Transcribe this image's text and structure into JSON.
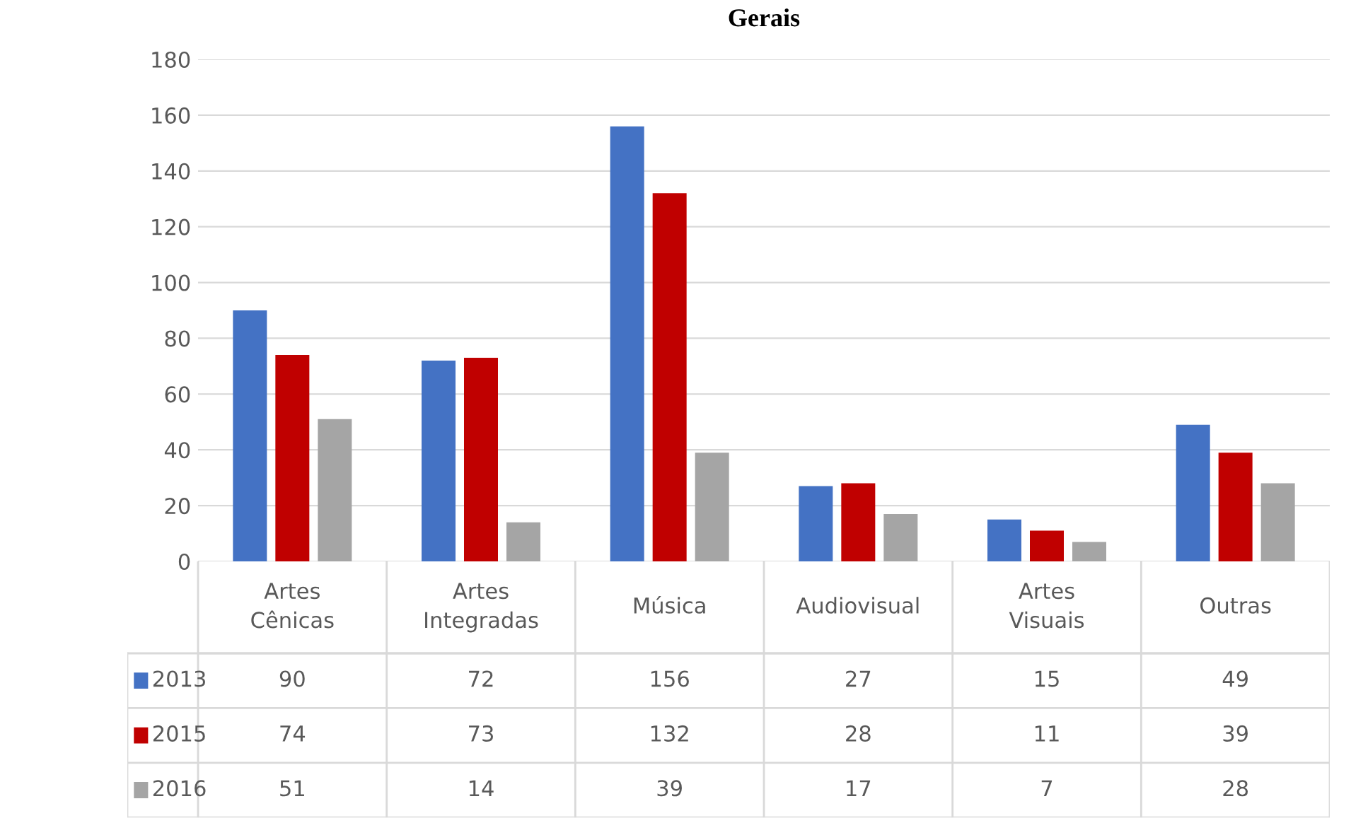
{
  "chart_data": {
    "type": "bar",
    "title": "Gerais",
    "categories": [
      "Artes\nCênicas",
      "Artes\nIntegradas",
      "Música",
      "Audiovisual",
      "Artes\nVisuais",
      "Outras"
    ],
    "series": [
      {
        "name": "2013",
        "color": "#4472c4",
        "values": [
          90,
          72,
          156,
          27,
          15,
          49
        ]
      },
      {
        "name": "2015",
        "color": "#c00000",
        "values": [
          74,
          73,
          132,
          28,
          11,
          39
        ]
      },
      {
        "name": "2016",
        "color": "#a5a5a5",
        "values": [
          51,
          14,
          39,
          17,
          7,
          28
        ]
      }
    ],
    "ylim": [
      0,
      180
    ],
    "yticks": [
      0,
      20,
      40,
      60,
      80,
      100,
      120,
      140,
      160,
      180
    ],
    "grid": "y",
    "data_labels": true,
    "legend": "bottom"
  }
}
